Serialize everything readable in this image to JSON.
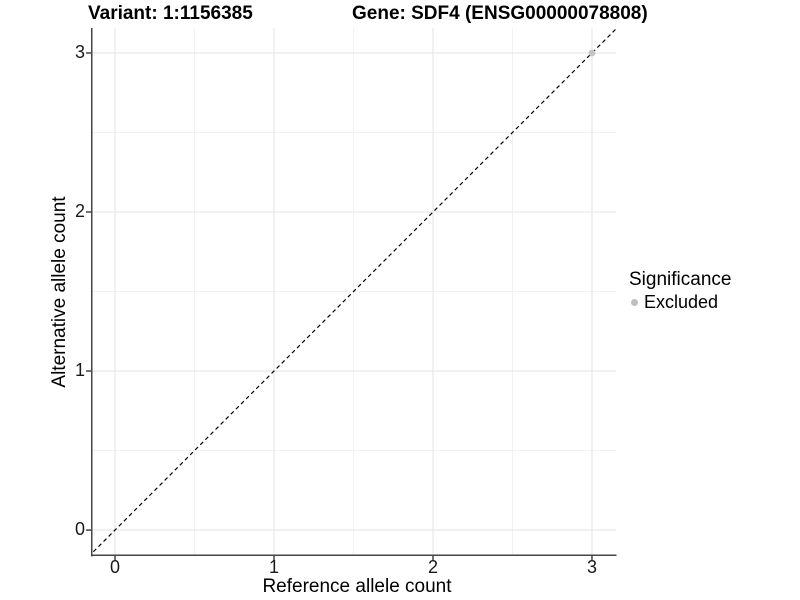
{
  "header": {
    "variant_title": "Variant: 1:1156385",
    "gene_title": "Gene: SDF4 (ENSG00000078808)"
  },
  "axes": {
    "x_label": "Reference allele count",
    "y_label": "Alternative allele count"
  },
  "legend": {
    "title": "Significance",
    "items": [
      {
        "label": "Excluded",
        "color": "#bfbfbf"
      }
    ]
  },
  "colors": {
    "background": "#ffffff",
    "grid_major": "#e5e5e5",
    "grid_minor": "#f2f2f2",
    "axis_line": "#454545",
    "tick_mark": "#454545",
    "dashed_line": "#000000",
    "point": "#c4c4c4",
    "text": "#000000"
  },
  "chart_data": {
    "type": "scatter",
    "title_left": "Variant: 1:1156385",
    "title_right": "Gene: SDF4 (ENSG00000078808)",
    "xlabel": "Reference allele count",
    "ylabel": "Alternative allele count",
    "xlim": [
      -0.151,
      3.151
    ],
    "ylim": [
      -0.163,
      3.157
    ],
    "x_ticks": [
      0,
      1,
      2,
      3
    ],
    "y_ticks": [
      0,
      1,
      2,
      3
    ],
    "x_minor_ticks": [
      0.5,
      1.5,
      2.5
    ],
    "y_minor_ticks": [
      0.5,
      1.5,
      2.5
    ],
    "grid": true,
    "legend_position": "right",
    "series": [
      {
        "name": "Excluded",
        "color": "#c4c4c4",
        "points": [
          {
            "x": 3,
            "y": 3
          }
        ]
      }
    ],
    "reference_line": {
      "kind": "identity y=x",
      "style": "dashed",
      "color": "#000000",
      "x0": -0.2,
      "y0": -0.2,
      "x1": 3.2,
      "y1": 3.2
    }
  }
}
